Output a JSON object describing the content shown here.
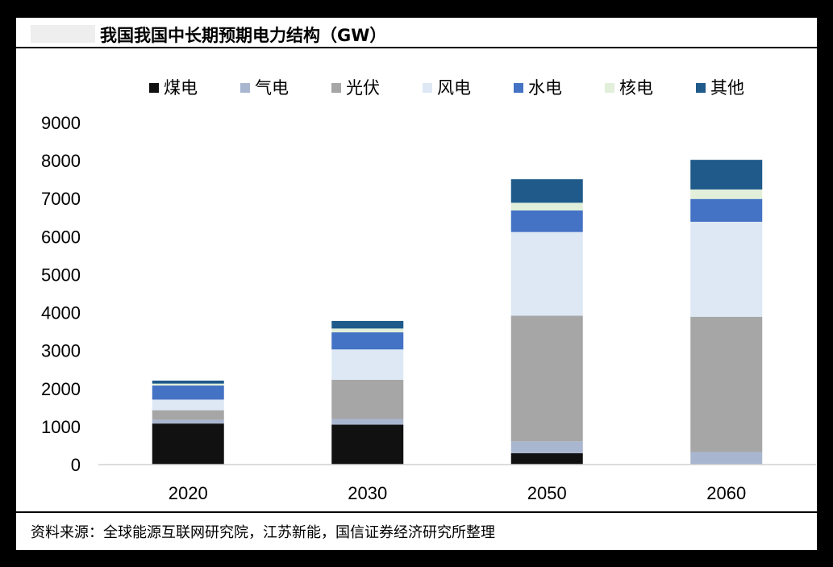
{
  "title": "我国我国中长期预期电力结构（GW）",
  "source": "资料来源：全球能源互联网研究院，江苏新能，国信证券经济研究所整理",
  "chart_data": {
    "type": "bar",
    "stacked": true,
    "categories": [
      "2020",
      "2030",
      "2050",
      "2060"
    ],
    "series": [
      {
        "name": "煤电",
        "color": "#111111",
        "values": [
          1080,
          1050,
          300,
          0
        ]
      },
      {
        "name": "气电",
        "color": "#a9b6cf",
        "values": [
          100,
          150,
          310,
          330
        ]
      },
      {
        "name": "光伏",
        "color": "#a6a6a6",
        "values": [
          250,
          1030,
          3310,
          3560
        ]
      },
      {
        "name": "风电",
        "color": "#dde8f4",
        "values": [
          280,
          800,
          2200,
          2500
        ]
      },
      {
        "name": "水电",
        "color": "#4472c4",
        "values": [
          370,
          450,
          570,
          600
        ]
      },
      {
        "name": "核电",
        "color": "#e2efda",
        "values": [
          50,
          100,
          200,
          250
        ]
      },
      {
        "name": "其他",
        "color": "#1f5a8a",
        "values": [
          80,
          200,
          620,
          780
        ]
      }
    ],
    "ylim": [
      0,
      9000
    ],
    "yticks": [
      0,
      1000,
      2000,
      3000,
      4000,
      5000,
      6000,
      7000,
      8000,
      9000
    ],
    "legend_position": "top",
    "grid": false
  }
}
